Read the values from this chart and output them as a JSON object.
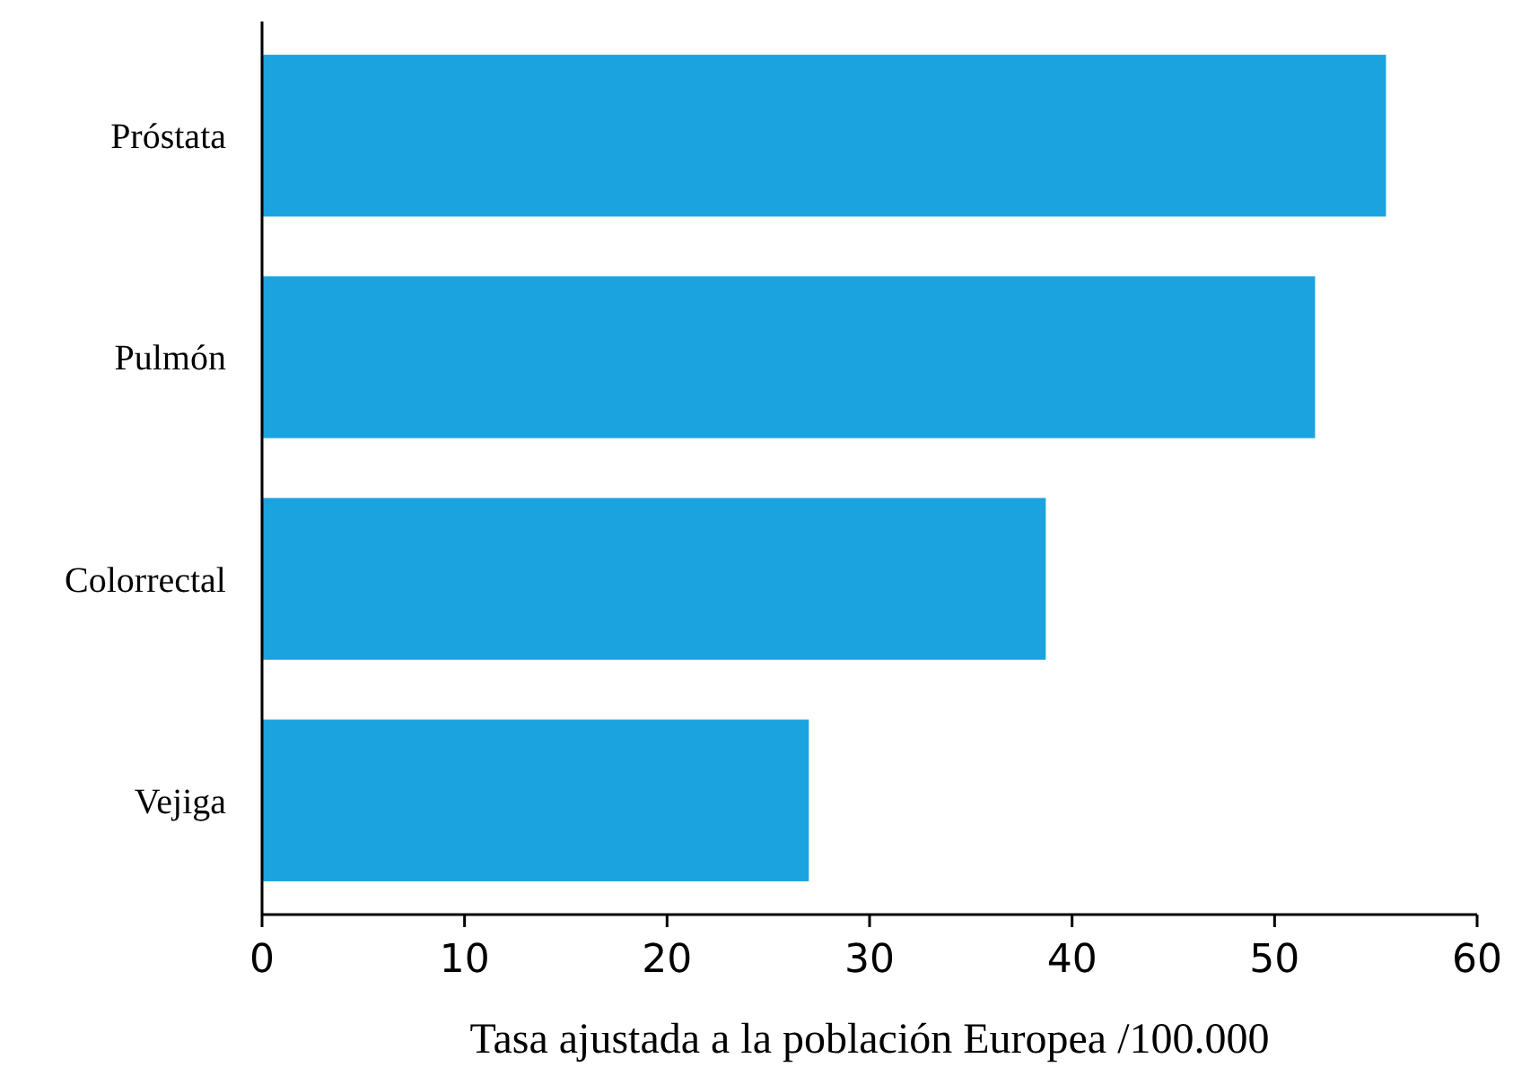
{
  "chart_data": {
    "type": "bar",
    "orientation": "horizontal",
    "categories": [
      "Próstata",
      "Pulmón",
      "Colorrectal",
      "Vejiga"
    ],
    "values": [
      55.5,
      52,
      38.7,
      27
    ],
    "color": "#1ba3e0",
    "xlabel": "Tasa ajustada a la población Europea /100.000",
    "xlim": [
      0,
      60
    ],
    "xticks": [
      0,
      10,
      20,
      30,
      40,
      50,
      60
    ],
    "grid": false
  }
}
